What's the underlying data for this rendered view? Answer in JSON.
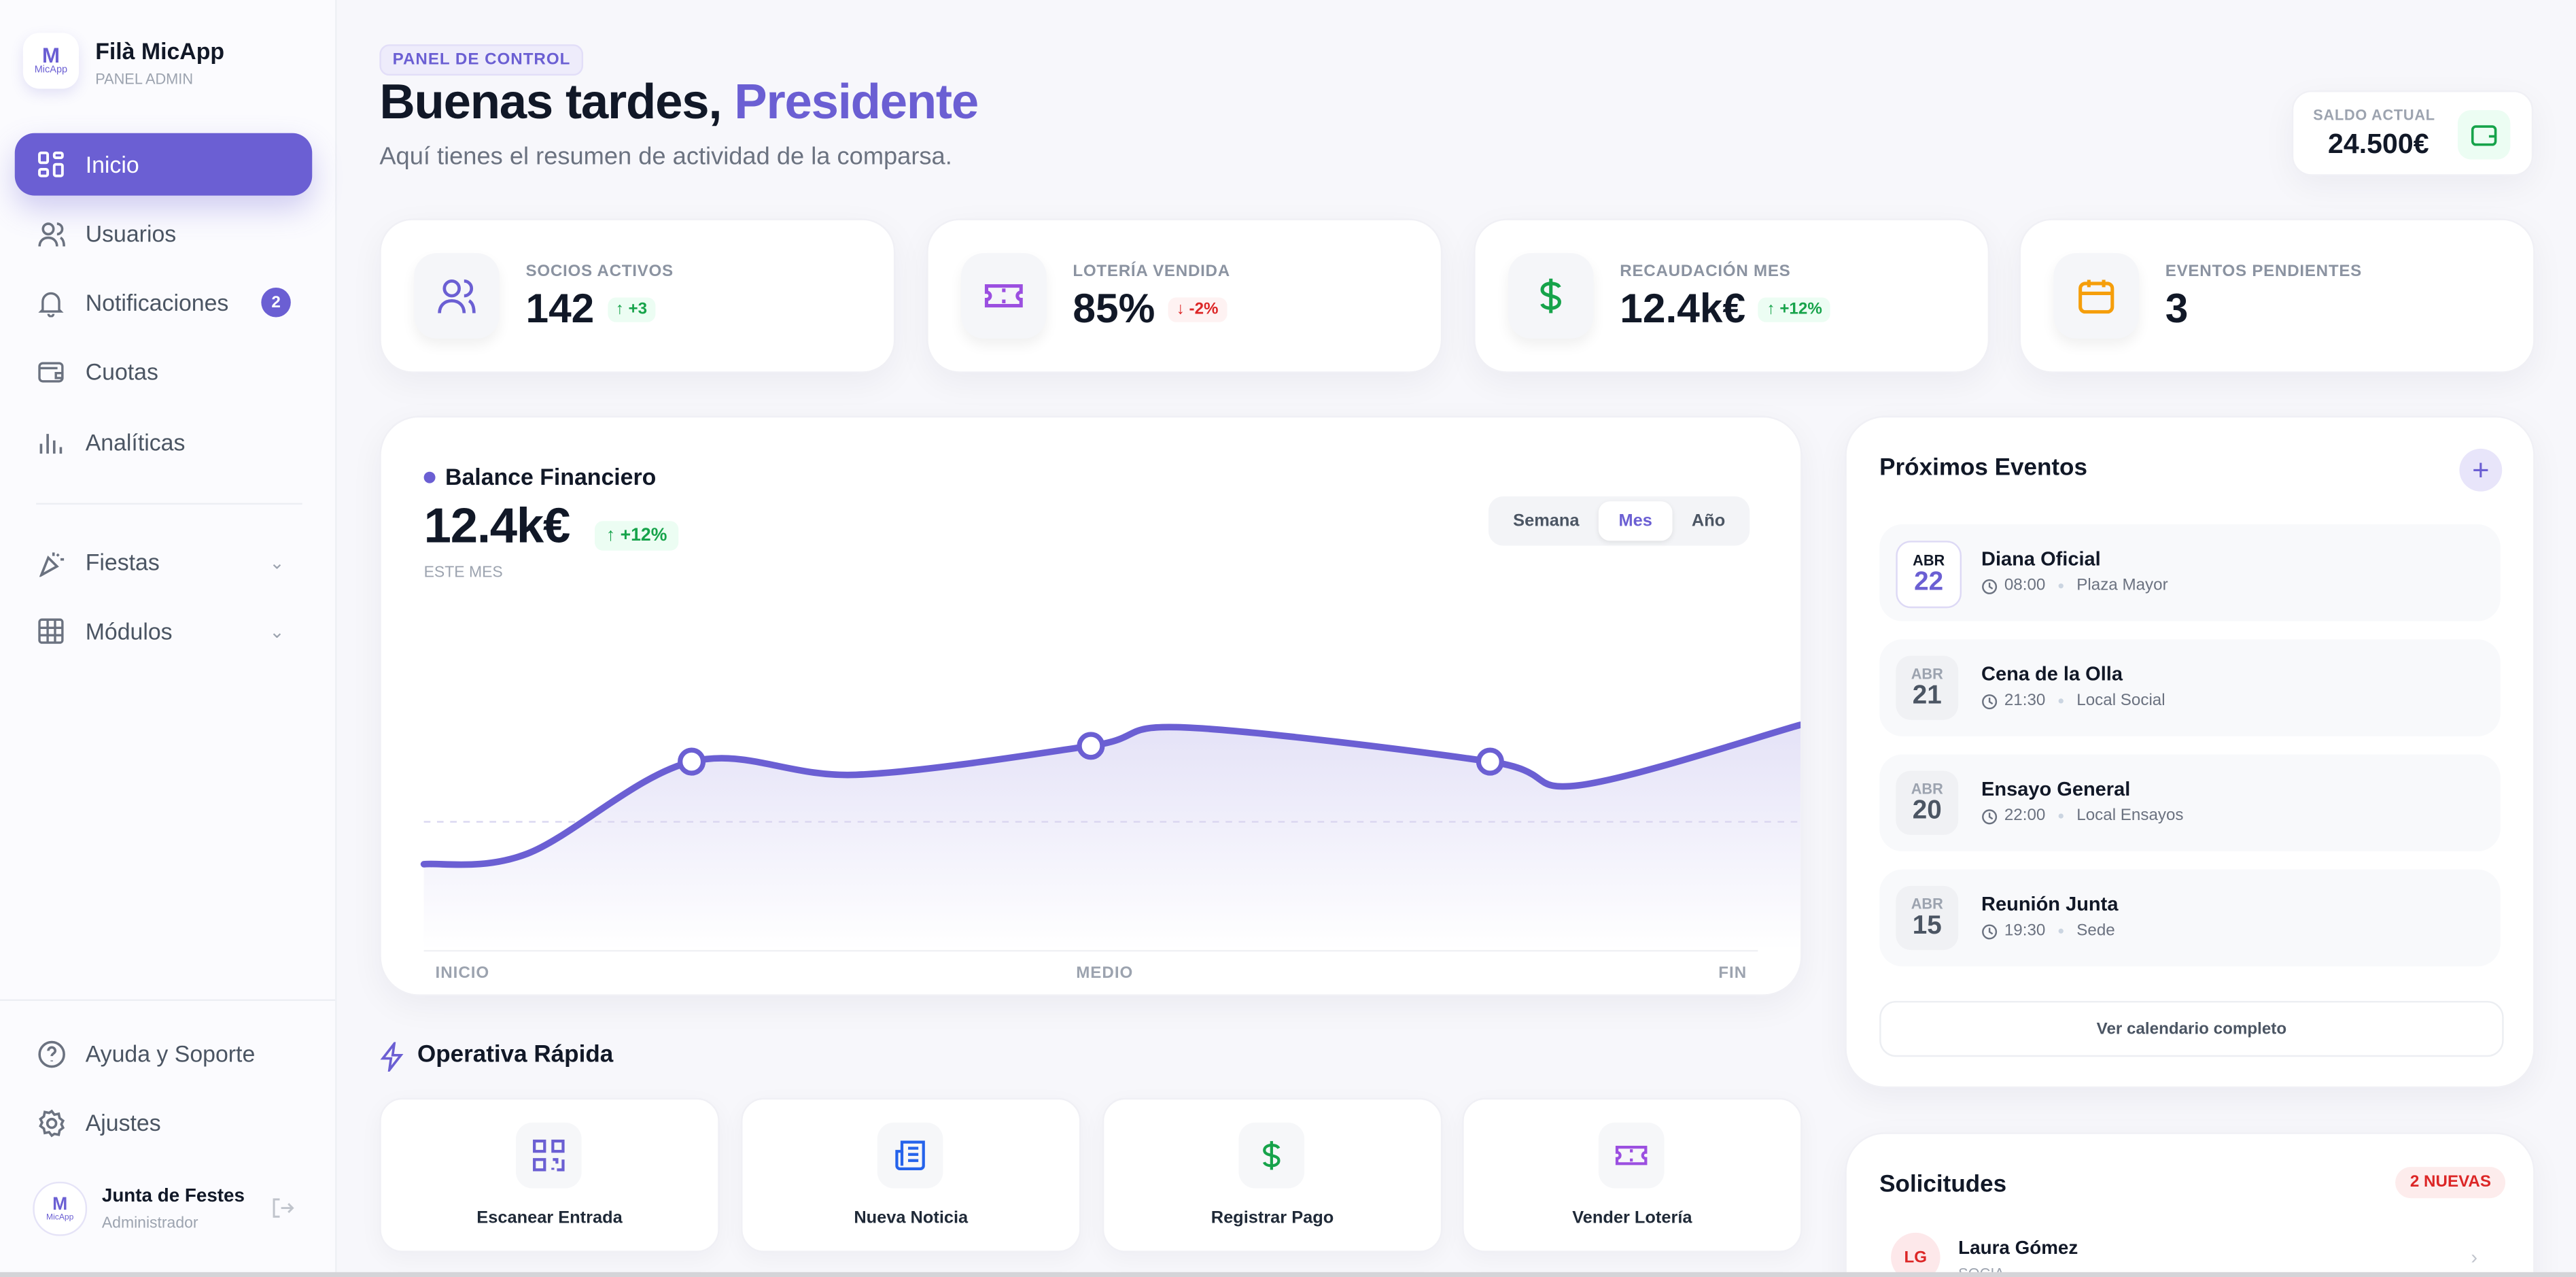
{
  "app": {
    "name": "Filà MicApp",
    "subtitle": "PANEL ADMIN",
    "logo_text": "MicApp"
  },
  "sidebar": {
    "items": [
      {
        "label": "Inicio",
        "icon": "dashboard-icon",
        "active": true
      },
      {
        "label": "Usuarios",
        "icon": "users-icon"
      },
      {
        "label": "Notificaciones",
        "icon": "bell-icon",
        "badge": "2"
      },
      {
        "label": "Cuotas",
        "icon": "wallet-icon"
      },
      {
        "label": "Analíticas",
        "icon": "bar-chart-icon"
      }
    ],
    "groups": [
      {
        "label": "Fiestas",
        "icon": "party-icon"
      },
      {
        "label": "Módulos",
        "icon": "grid-icon"
      }
    ],
    "footer": [
      {
        "label": "Ayuda y Soporte",
        "icon": "help-icon"
      },
      {
        "label": "Ajustes",
        "icon": "gear-icon"
      }
    ],
    "user": {
      "name": "Junta de Festes",
      "role": "Administrador"
    }
  },
  "header": {
    "badge": "PANEL DE CONTROL",
    "greeting": "Buenas tardes,",
    "name": "Presidente",
    "subtitle": "Aquí tienes el resumen de actividad de la comparsa.",
    "balance_label": "SALDO ACTUAL",
    "balance_value": "24.500€"
  },
  "stats": [
    {
      "label": "SOCIOS ACTIVOS",
      "value": "142",
      "delta": "↑ +3",
      "trend": "up",
      "icon": "users-icon",
      "color": "#6b5fd3"
    },
    {
      "label": "LOTERÍA VENDIDA",
      "value": "85%",
      "delta": "↓ -2%",
      "trend": "down",
      "icon": "ticket-icon",
      "color": "#9b4fe0"
    },
    {
      "label": "RECAUDACIÓN MES",
      "value": "12.4k€",
      "delta": "↑ +12%",
      "trend": "up",
      "icon": "dollar-icon",
      "color": "#16a34a"
    },
    {
      "label": "EVENTOS PENDIENTES",
      "value": "3",
      "icon": "calendar-icon",
      "color": "#f59e0b"
    }
  ],
  "chart": {
    "title": "Balance Financiero",
    "value": "12.4k€",
    "delta": "↑ +12%",
    "period": "ESTE MES",
    "tabs": [
      "Semana",
      "Mes",
      "Año"
    ],
    "active_tab": "Mes",
    "x_labels": [
      "INICIO",
      "MEDIO",
      "FIN"
    ],
    "color": "#6b5fd3",
    "series": [
      22,
      26,
      61,
      56,
      67,
      74,
      61,
      52,
      75
    ],
    "markers": [
      2,
      4,
      6
    ]
  },
  "quick": {
    "title": "Operativa Rápida",
    "actions": [
      {
        "label": "Escanear Entrada",
        "icon": "qr-code-icon",
        "color": "#6b5fd3"
      },
      {
        "label": "Nueva Noticia",
        "icon": "newspaper-icon",
        "color": "#2563eb"
      },
      {
        "label": "Registrar Pago",
        "icon": "dollar-icon",
        "color": "#16a34a"
      },
      {
        "label": "Vender Lotería",
        "icon": "ticket-icon",
        "color": "#9b4fe0"
      }
    ]
  },
  "events": {
    "title": "Próximos Eventos",
    "items": [
      {
        "month": "ABR",
        "day": "22",
        "title": "Diana Oficial",
        "time": "08:00",
        "place": "Plaza Mayor"
      },
      {
        "month": "ABR",
        "day": "21",
        "title": "Cena de la Olla",
        "time": "21:30",
        "place": "Local Social"
      },
      {
        "month": "ABR",
        "day": "20",
        "title": "Ensayo General",
        "time": "22:00",
        "place": "Local Ensayos"
      },
      {
        "month": "ABR",
        "day": "15",
        "title": "Reunión Junta",
        "time": "19:30",
        "place": "Sede"
      }
    ],
    "button": "Ver calendario completo"
  },
  "requests": {
    "title": "Solicitudes",
    "badge": "2 NUEVAS",
    "items": [
      {
        "initials": "LG",
        "name": "Laura Gómez",
        "role": "SOCIA"
      }
    ]
  }
}
